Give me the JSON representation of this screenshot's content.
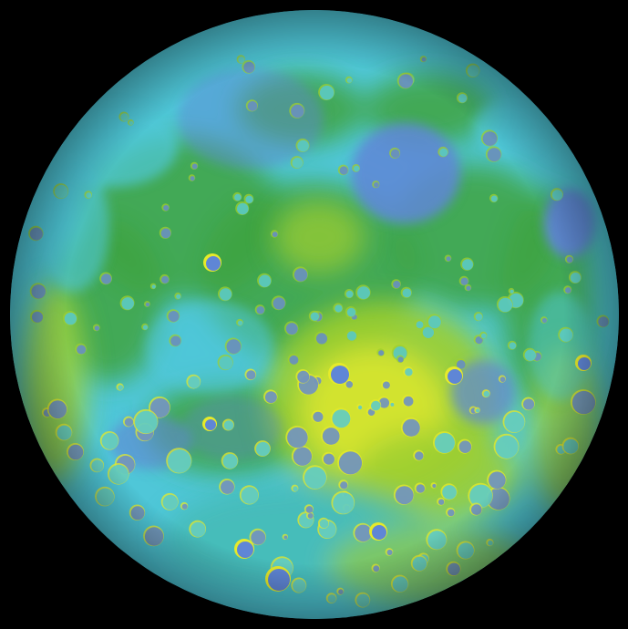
{
  "image": {
    "subject": "moon-topography",
    "background_color": "#000000",
    "palette": {
      "lowland_blue": "#5f86d6",
      "mare_cyan": "#4fc7d8",
      "plain_teal": "#3fb6a6",
      "midland_green": "#3ea33f",
      "highland_yellowgreen": "#9fcf2e",
      "highland_yellow": "#e6ea2a"
    }
  }
}
